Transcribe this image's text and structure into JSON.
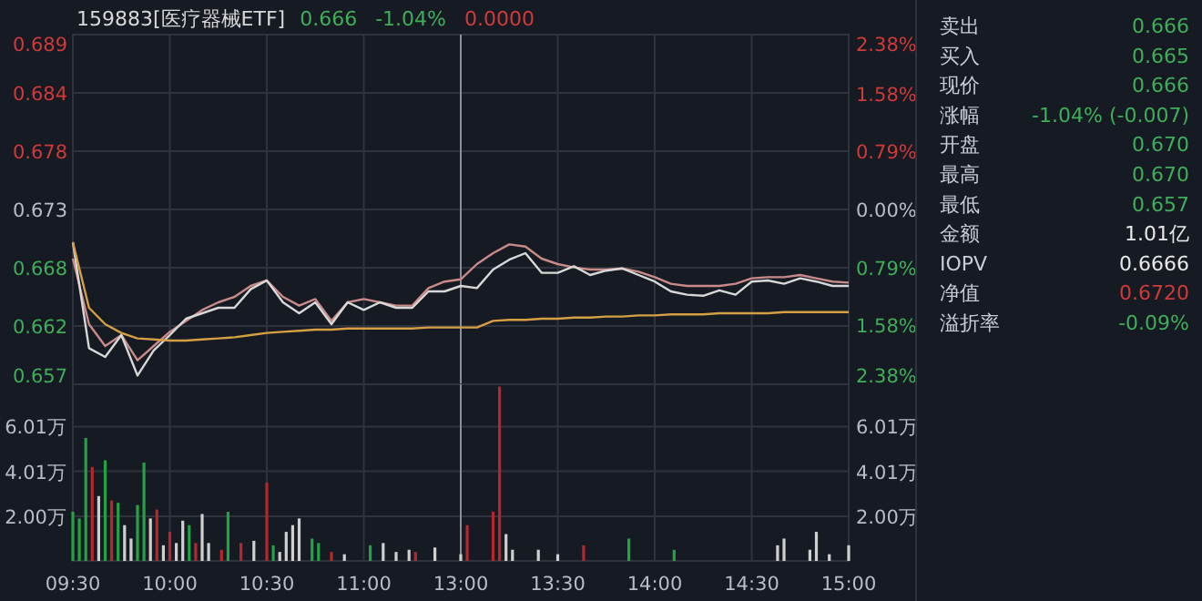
{
  "chart_data": [
    {
      "type": "line",
      "title": "159883[医疗器械ETF]",
      "annotations": [
        "0.666",
        "-1.04%",
        "0.0000"
      ],
      "categories": [
        "09:30",
        null,
        null,
        null,
        null,
        null,
        "10:00",
        null,
        null,
        null,
        null,
        null,
        "10:30",
        null,
        null,
        null,
        null,
        null,
        "11:00",
        null,
        null,
        null,
        null,
        null,
        "13:00",
        null,
        null,
        null,
        null,
        null,
        "13:30",
        null,
        null,
        null,
        null,
        null,
        "14:00",
        null,
        null,
        null,
        null,
        null,
        "14:30",
        null,
        null,
        null,
        null,
        null,
        "15:00"
      ],
      "ylim": [
        0.657,
        0.689
      ],
      "yticks": [
        {
          "value": 0.657,
          "label": "0.657"
        },
        {
          "value": 0.66233,
          "label": "0.662"
        },
        {
          "value": 0.66767,
          "label": "0.668"
        },
        {
          "value": 0.673,
          "label": "0.673"
        },
        {
          "value": 0.67833,
          "label": "0.678"
        },
        {
          "value": 0.68367,
          "label": "0.684"
        },
        {
          "value": 0.689,
          "label": "0.689"
        }
      ],
      "y2lim": [
        -2.38,
        2.38
      ],
      "y2ticks": [
        {
          "value": -2.38,
          "label": "2.38%"
        },
        {
          "value": -1.58,
          "label": "1.58%"
        },
        {
          "value": -0.79,
          "label": "0.79%"
        },
        {
          "value": 0,
          "label": "0.00%"
        },
        {
          "value": 0.79,
          "label": "0.79%"
        },
        {
          "value": 1.58,
          "label": "1.58%"
        },
        {
          "value": 2.38,
          "label": "2.38%"
        }
      ],
      "grid": true,
      "tick_labels": "y",
      "ref_lines": [
        {
          "axis": "x",
          "value": "13:00",
          "color": "#8a8f99"
        }
      ],
      "series": [
        {
          "color": "#c98a8a",
          "values": [
            0.6685,
            0.6625,
            0.6605,
            0.6615,
            0.6592,
            0.6605,
            0.6618,
            0.6628,
            0.6638,
            0.6645,
            0.665,
            0.666,
            0.6665,
            0.665,
            0.6642,
            0.6648,
            0.6628,
            0.6645,
            0.6648,
            0.6645,
            0.6642,
            0.6642,
            0.6658,
            0.6664,
            0.6666,
            0.668,
            0.669,
            0.6698,
            0.6696,
            0.6685,
            0.668,
            0.6677,
            0.6675,
            0.6675,
            0.6676,
            0.6673,
            0.6668,
            0.6662,
            0.666,
            0.666,
            0.666,
            0.6662,
            0.6667,
            0.6668,
            0.6668,
            0.667,
            0.6667,
            0.6664,
            0.6663
          ]
        },
        {
          "color": "#d8d8d8",
          "values": [
            0.67,
            0.6603,
            0.6595,
            0.6615,
            0.6578,
            0.6601,
            0.6615,
            0.663,
            0.6635,
            0.664,
            0.664,
            0.6657,
            0.6665,
            0.6645,
            0.6635,
            0.6645,
            0.6625,
            0.6645,
            0.6638,
            0.6645,
            0.664,
            0.664,
            0.6655,
            0.6655,
            0.666,
            0.6658,
            0.6675,
            0.6684,
            0.669,
            0.6672,
            0.6672,
            0.6678,
            0.667,
            0.6674,
            0.6676,
            0.667,
            0.6664,
            0.6655,
            0.6652,
            0.6651,
            0.6656,
            0.6652,
            0.6664,
            0.6665,
            0.6662,
            0.6667,
            0.6664,
            0.666,
            0.666
          ]
        },
        {
          "color": "#d4a043",
          "values": [
            0.67,
            0.664,
            0.6625,
            0.6617,
            0.6612,
            0.6611,
            0.661,
            0.661,
            0.6611,
            0.6612,
            0.6613,
            0.6615,
            0.6617,
            0.6618,
            0.6619,
            0.662,
            0.662,
            0.6621,
            0.6621,
            0.6621,
            0.6621,
            0.6621,
            0.6622,
            0.6622,
            0.6622,
            0.6622,
            0.6628,
            0.6629,
            0.6629,
            0.663,
            0.663,
            0.6631,
            0.6631,
            0.6632,
            0.6632,
            0.6633,
            0.6633,
            0.6634,
            0.6634,
            0.6634,
            0.6635,
            0.6635,
            0.6635,
            0.6635,
            0.6636,
            0.6636,
            0.6636,
            0.6636,
            0.6636
          ]
        }
      ]
    },
    {
      "type": "bar",
      "categories": [
        "09:30",
        null,
        null,
        null,
        null,
        null,
        null,
        null,
        null,
        null,
        null,
        null,
        null,
        null,
        null,
        "10:00",
        null,
        null,
        null,
        null,
        null,
        null,
        null,
        null,
        null,
        null,
        null,
        null,
        null,
        null,
        "10:30",
        null,
        null,
        null,
        null,
        null,
        null,
        null,
        null,
        null,
        null,
        null,
        null,
        null,
        null,
        "11:00",
        null,
        null,
        null,
        null,
        null,
        null,
        null,
        null,
        null,
        null,
        null,
        null,
        null,
        null,
        "13:00",
        null,
        null,
        null,
        null,
        null,
        null,
        null,
        null,
        null,
        null,
        null,
        null,
        null,
        null,
        "13:30",
        null,
        null,
        null,
        null,
        null,
        null,
        null,
        null,
        null,
        null,
        null,
        null,
        null,
        null,
        "14:00",
        null,
        null,
        null,
        null,
        null,
        null,
        null,
        null,
        null,
        null,
        null,
        null,
        null,
        null,
        "14:30",
        null,
        null,
        null,
        null,
        null,
        null,
        null,
        null,
        null,
        null,
        null,
        null,
        null,
        null,
        "15:00"
      ],
      "ylim": [
        0,
        7.9
      ],
      "yticks": [
        {
          "value": 2.0,
          "label": "2.00万"
        },
        {
          "value": 4.01,
          "label": "4.01万"
        },
        {
          "value": 6.01,
          "label": "6.01万"
        }
      ],
      "y2lim": [
        0,
        7.9
      ],
      "y2ticks": [
        {
          "value": 2.0,
          "label": "2.00万"
        },
        {
          "value": 4.01,
          "label": "4.01万"
        },
        {
          "value": 6.01,
          "label": "6.01万"
        }
      ],
      "grid": true,
      "ref_lines": [
        {
          "axis": "x",
          "value": "13:00",
          "color": "#8a8f99"
        }
      ],
      "series": [
        {
          "values": [
            2.2,
            1.9,
            5.5,
            4.2,
            2.9,
            4.5,
            2.7,
            2.6,
            1.6,
            1.0,
            2.5,
            4.4,
            1.9,
            2.3,
            0.7,
            1.3,
            0.8,
            1.8,
            1.6,
            0.8,
            2.1,
            0.8,
            null,
            0.5,
            2.2,
            null,
            0.8,
            null,
            0.9,
            null,
            3.5,
            0.7,
            0.4,
            1.3,
            1.6,
            1.9,
            null,
            1.0,
            0.8,
            null,
            0.4,
            null,
            0.3,
            null,
            null,
            null,
            0.7,
            null,
            0.8,
            null,
            0.4,
            null,
            0.5,
            0.4,
            null,
            null,
            0.6,
            null,
            null,
            null,
            0.3,
            1.6,
            null,
            null,
            null,
            2.2,
            7.8,
            1.2,
            0.5,
            null,
            null,
            null,
            0.5,
            null,
            null,
            0.3,
            null,
            null,
            null,
            0.7,
            null,
            null,
            null,
            null,
            null,
            null,
            1.0,
            null,
            null,
            null,
            null,
            null,
            null,
            0.5,
            null,
            null,
            null,
            null,
            null,
            null,
            null,
            null,
            null,
            null,
            null,
            null,
            null,
            null,
            null,
            0.7,
            1.0,
            null,
            null,
            null,
            0.5,
            1.3,
            null,
            0.3,
            null,
            null,
            0.7
          ],
          "colors": [
            "#25a244",
            "#25a244",
            "#25a244",
            "#b3282d",
            "#cfcfcf",
            "#25a244",
            "#b3282d",
            "#25a244",
            "#cfcfcf",
            "#cfcfcf",
            "#25a244",
            "#25a244",
            "#cfcfcf",
            "#b3282d",
            "#cfcfcf",
            "#b3282d",
            "#cfcfcf",
            "#cfcfcf",
            "#25a244",
            "#b3282d",
            "#cfcfcf",
            "#cfcfcf",
            null,
            "#b3282d",
            "#25a244",
            null,
            "#b3282d",
            null,
            "#cfcfcf",
            null,
            "#b3282d",
            "#25a244",
            "#cfcfcf",
            "#cfcfcf",
            "#cfcfcf",
            "#cfcfcf",
            null,
            "#25a244",
            "#25a244",
            null,
            "#b3282d",
            null,
            "#cfcfcf",
            null,
            null,
            null,
            "#25a244",
            null,
            "#cfcfcf",
            null,
            "#cfcfcf",
            null,
            "#cfcfcf",
            "#b3282d",
            null,
            null,
            "#cfcfcf",
            null,
            null,
            null,
            "#cfcfcf",
            "#b3282d",
            null,
            null,
            null,
            "#b3282d",
            "#b3282d",
            "#cfcfcf",
            "#cfcfcf",
            null,
            null,
            null,
            "#cfcfcf",
            null,
            null,
            "#cfcfcf",
            null,
            null,
            null,
            "#b3282d",
            null,
            null,
            null,
            null,
            null,
            null,
            "#25a244",
            null,
            null,
            null,
            null,
            null,
            null,
            "#25a244",
            null,
            null,
            null,
            null,
            null,
            null,
            null,
            null,
            null,
            null,
            null,
            null,
            null,
            null,
            null,
            "#cfcfcf",
            "#cfcfcf",
            null,
            null,
            null,
            "#cfcfcf",
            "#cfcfcf",
            null,
            "#cfcfcf",
            null,
            null,
            "#cfcfcf"
          ]
        }
      ]
    },
    {
      "type": "other",
      "categories": [
        "卖出",
        "买入",
        "现价",
        "涨幅",
        "开盘",
        "最高",
        "最低",
        "金额",
        "IOPV",
        "净值",
        "溢折率"
      ],
      "value_labels": [
        "0.666",
        "0.665",
        "0.666",
        "-1.04% (-0.007)",
        "0.670",
        "0.670",
        "0.657",
        "1.01亿",
        "0.6666",
        "0.6720",
        "-0.09%"
      ],
      "colors": [
        "#3fae5a",
        "#3fae5a",
        "#3fae5a",
        "#3fae5a",
        "#3fae5a",
        "#3fae5a",
        "#3fae5a",
        "#e8e8e8",
        "#e8e8e8",
        "#d03a3a",
        "#3fae5a"
      ]
    }
  ]
}
